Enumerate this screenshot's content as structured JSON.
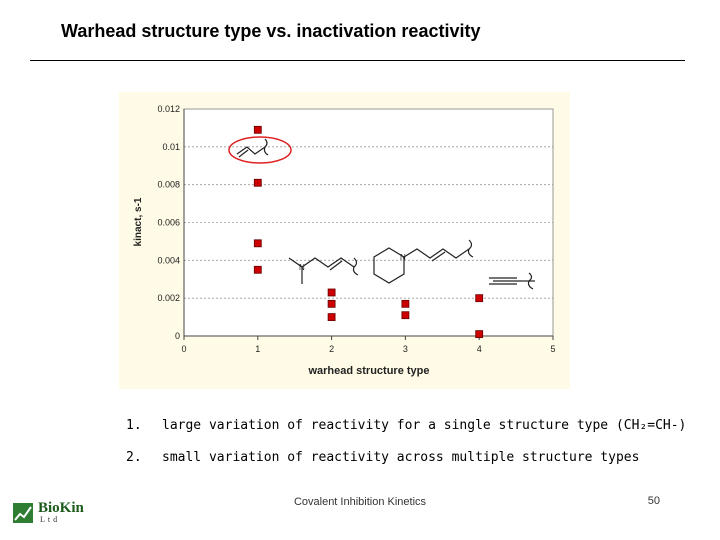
{
  "slide": {
    "title": "Warhead structure type vs. inactivation reactivity",
    "bullets": [
      {
        "num": "1.",
        "text": "large variation of reactivity for a single structure type (CH₂=CH-)"
      },
      {
        "num": "2.",
        "text": "small variation of reactivity across multiple structure types"
      }
    ],
    "footer": "Covalent Inhibition Kinetics",
    "page_number": "50",
    "logo": {
      "name": "BioKin",
      "sub": "Ltd"
    }
  },
  "chart_data": {
    "type": "scatter",
    "title": "",
    "xlabel": "warhead structure type",
    "ylabel": "kinact, s-1",
    "xlim": [
      0,
      5
    ],
    "ylim": [
      0,
      0.012
    ],
    "x_ticks": [
      "0",
      "1",
      "2",
      "3",
      "4",
      "5"
    ],
    "y_ticks": [
      "0",
      "0.002",
      "0.004",
      "0.006",
      "0.008",
      "0.01",
      "0.012"
    ],
    "grid": true,
    "marker_color": "#cc0000",
    "highlight_color": "#dd2222",
    "points": [
      {
        "x": 1,
        "y": 0.0109
      },
      {
        "x": 1,
        "y": 0.0081
      },
      {
        "x": 1,
        "y": 0.0049
      },
      {
        "x": 1,
        "y": 0.0035
      },
      {
        "x": 2,
        "y": 0.0023
      },
      {
        "x": 2,
        "y": 0.0017
      },
      {
        "x": 2,
        "y": 0.001
      },
      {
        "x": 3,
        "y": 0.0017
      },
      {
        "x": 3,
        "y": 0.0011
      },
      {
        "x": 4,
        "y": 0.002
      },
      {
        "x": 4,
        "y": 0.0001
      }
    ]
  }
}
